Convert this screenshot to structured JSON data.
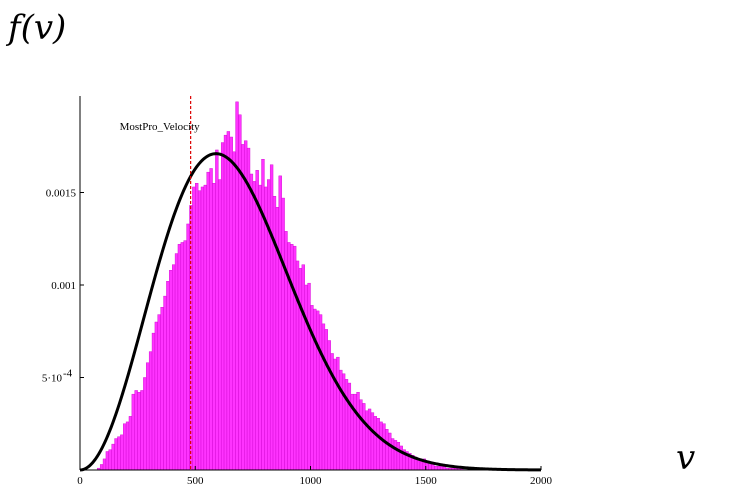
{
  "labels": {
    "y_axis_label": "f(v)",
    "x_axis_label": "v"
  },
  "chart_data": {
    "type": "bar",
    "title": "",
    "xlabel": "v",
    "ylabel": "f(v)",
    "xlim": [
      0,
      2000
    ],
    "ylim": [
      0,
      0.002
    ],
    "x_ticks": [
      0,
      500,
      1000,
      1500,
      2000
    ],
    "x_tick_labels": [
      "0",
      "500",
      "1000",
      "1500",
      "2000"
    ],
    "y_ticks": [
      0.0005,
      0.001,
      0.0015
    ],
    "y_tick_labels": [
      "5·10",
      "0.001",
      "0.0015"
    ],
    "y_tick_exponent": "-4",
    "grid": false,
    "legend": "none",
    "histogram": {
      "bin_width": 12.5,
      "bin_start": 75,
      "values": [
        1e-05,
        3e-05,
        6e-05,
        0.0001,
        0.00011,
        0.00014,
        0.00017,
        0.00018,
        0.00019,
        0.00025,
        0.00026,
        0.00029,
        0.00041,
        0.00043,
        0.00042,
        0.00043,
        0.0005,
        0.00058,
        0.00064,
        0.00074,
        0.0008,
        0.00084,
        0.00088,
        0.00094,
        0.00102,
        0.00108,
        0.00111,
        0.00117,
        0.00122,
        0.00123,
        0.00124,
        0.00133,
        0.00143,
        0.00153,
        0.00155,
        0.00151,
        0.00153,
        0.00154,
        0.00161,
        0.00163,
        0.00155,
        0.00173,
        0.00157,
        0.00177,
        0.00181,
        0.00183,
        0.0018,
        0.00172,
        0.00199,
        0.00192,
        0.00176,
        0.00178,
        0.00174,
        0.0016,
        0.00156,
        0.00162,
        0.00154,
        0.00168,
        0.00153,
        0.00157,
        0.00165,
        0.00148,
        0.00142,
        0.00159,
        0.00147,
        0.00129,
        0.00123,
        0.00122,
        0.00121,
        0.00113,
        0.00109,
        0.00111,
        0.001,
        0.00101,
        0.00089,
        0.00087,
        0.00086,
        0.00084,
        0.00079,
        0.00076,
        0.0007,
        0.00063,
        0.0006,
        0.00061,
        0.00054,
        0.00052,
        0.00049,
        0.00047,
        0.00041,
        0.00041,
        0.00042,
        0.00038,
        0.00036,
        0.00032,
        0.00033,
        0.00031,
        0.00029,
        0.00028,
        0.00026,
        0.00025,
        0.00022,
        0.0002,
        0.00017,
        0.00016,
        0.00015,
        0.00013,
        0.00011,
        0.0001,
        9e-05,
        8e-05,
        7e-05,
        6e-05,
        5e-05,
        6e-05,
        4e-05,
        3e-05,
        4e-05,
        2e-05,
        2e-05,
        3e-05,
        2e-05,
        1e-05,
        1e-05,
        1e-05,
        1e-05,
        1e-05,
        1e-05
      ],
      "color": "#ff33ff",
      "edge_color": "#cc00cc"
    },
    "series": [
      {
        "type": "line",
        "function": "maxwell-boltzmann",
        "peak_x": 590,
        "peak_y": 0.00171,
        "color": "#000000"
      }
    ],
    "annotations": [
      {
        "type": "vline",
        "x": 480,
        "label": "MostPro_Velocity",
        "color": "#dd0000",
        "style": "dashed"
      }
    ]
  }
}
